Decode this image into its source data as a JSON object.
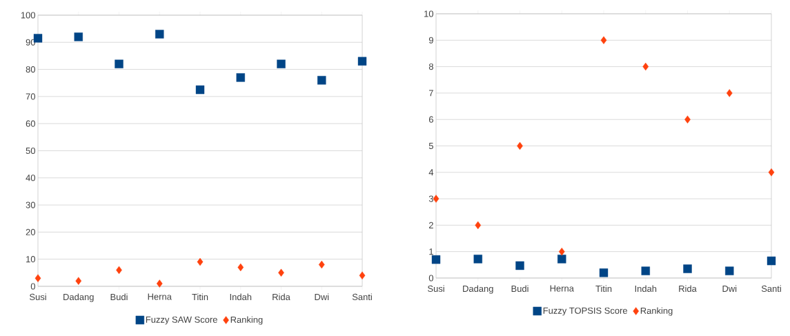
{
  "chart_data": [
    {
      "type": "scatter",
      "categories": [
        "Susi",
        "Dadang",
        "Budi",
        "Herna",
        "Titin",
        "Indah",
        "Rida",
        "Dwi",
        "Santi"
      ],
      "series": [
        {
          "name": "Fuzzy SAW Score",
          "color": "#004586",
          "marker": "square",
          "values": [
            91.5,
            92,
            82,
            93,
            72.5,
            77,
            82,
            76,
            83
          ]
        },
        {
          "name": "Ranking",
          "color": "#ff420e",
          "marker": "diamond",
          "values": [
            3,
            2,
            6,
            1,
            9,
            7,
            5,
            8,
            4
          ]
        }
      ],
      "ylim": [
        0,
        100
      ],
      "yticks": [
        0,
        10,
        20,
        30,
        40,
        50,
        60,
        70,
        80,
        90,
        100
      ],
      "grid": "y",
      "legend": "bottom"
    },
    {
      "type": "scatter",
      "categories": [
        "Susi",
        "Dadang",
        "Budi",
        "Herna",
        "Titin",
        "Indah",
        "Rida",
        "Dwi",
        "Santi"
      ],
      "series": [
        {
          "name": "Fuzzy TOPSIS Score",
          "color": "#004586",
          "marker": "square",
          "values": [
            0.7,
            0.72,
            0.47,
            0.72,
            0.2,
            0.27,
            0.35,
            0.27,
            0.65
          ]
        },
        {
          "name": "Ranking",
          "color": "#ff420e",
          "marker": "diamond",
          "values": [
            3,
            2,
            5,
            1,
            9,
            8,
            6,
            7,
            4
          ]
        }
      ],
      "ylim": [
        0,
        10
      ],
      "yticks": [
        0,
        1,
        2,
        3,
        4,
        5,
        6,
        7,
        8,
        9,
        10
      ],
      "grid": "y",
      "legend": "bottom"
    }
  ]
}
